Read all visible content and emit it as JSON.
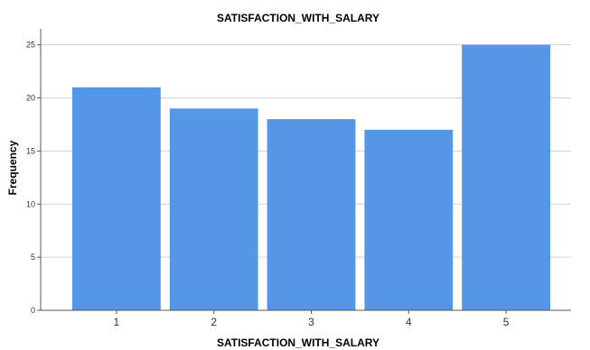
{
  "chart_data": {
    "type": "bar",
    "title": "SATISFACTION_WITH_SALARY",
    "xlabel": "SATISFACTION_WITH_SALARY",
    "ylabel": "Frequency",
    "categories": [
      "1",
      "2",
      "3",
      "4",
      "5"
    ],
    "values": [
      21,
      19,
      18,
      17,
      25
    ],
    "ylim": [
      0,
      26.5
    ],
    "yticks": [
      "0",
      "5",
      "10",
      "15",
      "20",
      "25"
    ],
    "grid": true,
    "bar_color": "#5596e6",
    "grid_color": "#d0d0d0",
    "axis_color": "#555555"
  }
}
